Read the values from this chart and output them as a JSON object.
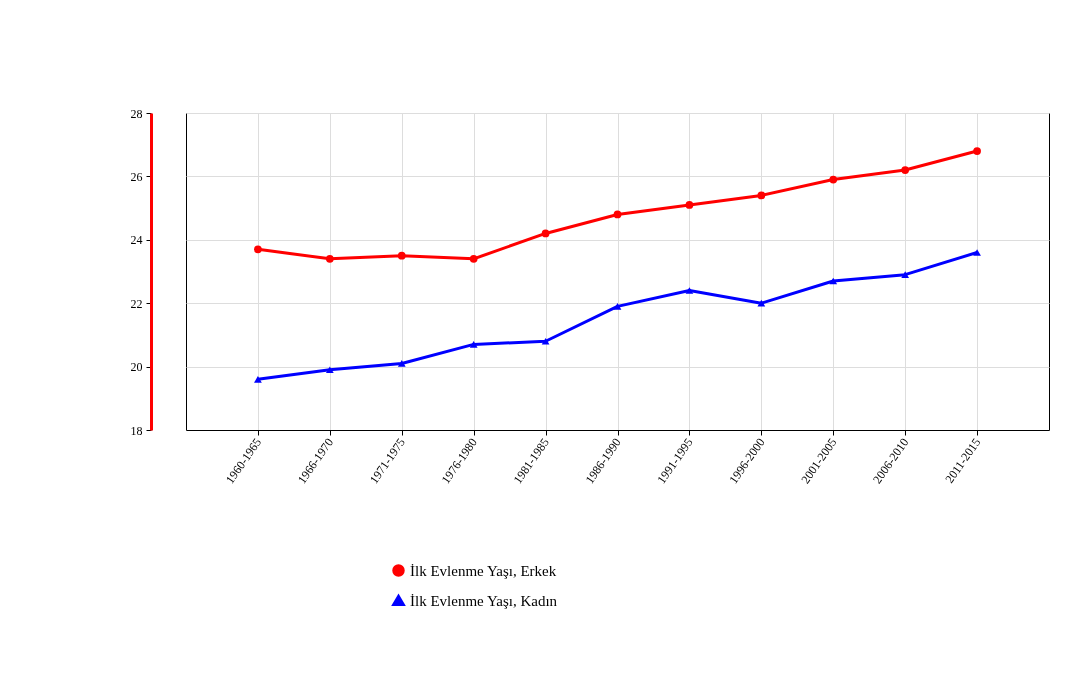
{
  "chart_data": {
    "type": "line",
    "categories": [
      "1960-1965",
      "1966-1970",
      "1971-1975",
      "1976-1980",
      "1981-1985",
      "1986-1990",
      "1991-1995",
      "1996-2000",
      "2001-2005",
      "2006-2010",
      "2011-2015"
    ],
    "series": [
      {
        "name": "İlk Evlenme Yaşı, Erkek",
        "color": "#ff0000",
        "marker": "circle",
        "values": [
          23.7,
          23.4,
          23.5,
          23.4,
          24.2,
          24.8,
          25.1,
          25.4,
          25.9,
          26.2,
          26.8
        ]
      },
      {
        "name": "İlk Evlenme Yaşı, Kadın",
        "color": "#0000ff",
        "marker": "triangle",
        "values": [
          19.6,
          19.9,
          20.1,
          20.7,
          20.8,
          21.9,
          22.4,
          22.0,
          22.7,
          22.9,
          23.6
        ]
      }
    ],
    "ylim": [
      18,
      28
    ],
    "yticks": [
      18,
      20,
      22,
      24,
      26,
      28
    ],
    "grid": true,
    "legend": "bottom left"
  }
}
